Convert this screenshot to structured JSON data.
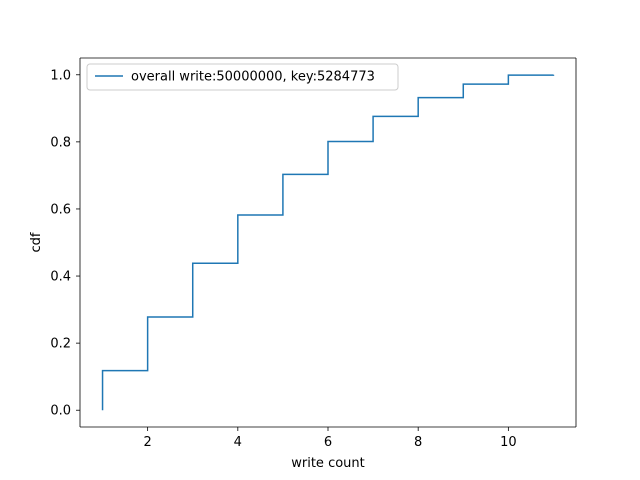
{
  "chart_data": {
    "type": "line",
    "title": "",
    "xlabel": "write count",
    "ylabel": "cdf",
    "xlim": [
      0.5,
      11.5
    ],
    "ylim": [
      -0.05,
      1.05
    ],
    "xticks": [
      2,
      4,
      6,
      8,
      10
    ],
    "xtick_labels": [
      "2",
      "4",
      "6",
      "8",
      "10"
    ],
    "yticks": [
      0.0,
      0.2,
      0.4,
      0.6,
      0.8,
      1.0
    ],
    "ytick_labels": [
      "0.0",
      "0.2",
      "0.4",
      "0.6",
      "0.8",
      "1.0"
    ],
    "grid": false,
    "legend_position": "upper-left",
    "step": "post",
    "series": [
      {
        "name": "overall write:50000000, key:5284773",
        "color": "#1f77b4",
        "x": [
          1,
          1,
          2,
          3,
          4,
          5,
          6,
          7,
          8,
          9,
          10,
          11
        ],
        "y": [
          0.0,
          0.118,
          0.278,
          0.438,
          0.582,
          0.703,
          0.801,
          0.876,
          0.932,
          0.972,
          0.999,
          1.0
        ]
      }
    ]
  }
}
